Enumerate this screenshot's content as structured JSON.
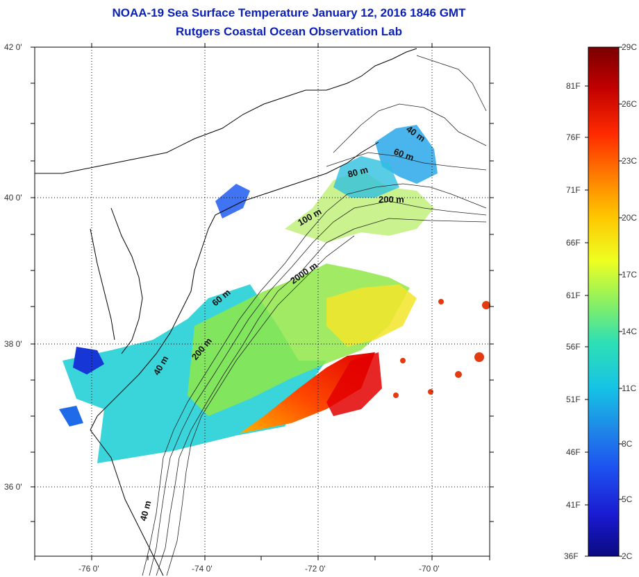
{
  "title": {
    "line1": "NOAA-19 Sea Surface Temperature January 12, 2016 1846 GMT",
    "line2": "Rutgers Coastal Ocean Observation Lab"
  },
  "map": {
    "lat_ticks": [
      "42 0'",
      "40 0'",
      "38 0'",
      "36 0'"
    ],
    "lon_ticks": [
      "-76 0'",
      "-74 0'",
      "-72 0'",
      "-70 0'"
    ],
    "contour_labels": [
      "40 m",
      "60 m",
      "80 m",
      "200 m",
      "100 m",
      "2000 m",
      "60 m",
      "200 m",
      "40 m",
      "40 m"
    ]
  },
  "colorbar": {
    "celsius_labels": [
      "29C",
      "26C",
      "23C",
      "20C",
      "17C",
      "14C",
      "11C",
      "8C",
      "5C",
      "2C"
    ],
    "fahrenheit_labels": [
      "81F",
      "76F",
      "71F",
      "66F",
      "61F",
      "56F",
      "51F",
      "46F",
      "41F",
      "36F"
    ],
    "colors": [
      "#7a0000",
      "#c00000",
      "#ff2a00",
      "#ff7a00",
      "#ffc400",
      "#eeff22",
      "#8cf060",
      "#2ee0b4",
      "#16c3e6",
      "#1e88e8",
      "#1d4ff0",
      "#1a1ad0",
      "#0a0a80"
    ]
  }
}
